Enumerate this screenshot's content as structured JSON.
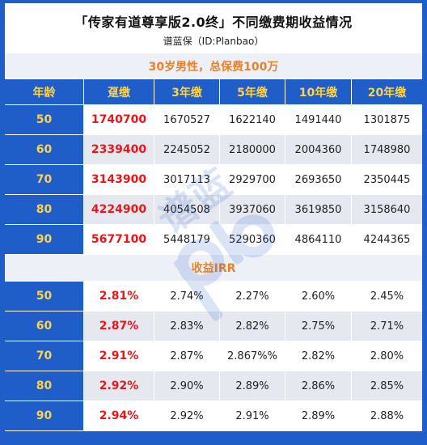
{
  "header": {
    "title": "「传家有道尊享版2.0终」不同缴费期收益情况",
    "subtitle": "谱蓝保（ID:Planbao）"
  },
  "section1": {
    "banner": "30岁男性，总保费100万"
  },
  "columns": [
    "年龄",
    "趸缴",
    "3年缴",
    "5年缴",
    "10年缴",
    "20年缴"
  ],
  "cash_rows": [
    {
      "age": "50",
      "values": [
        "1740700",
        "1670527",
        "1622140",
        "1491440",
        "1301875"
      ]
    },
    {
      "age": "60",
      "values": [
        "2339400",
        "2245052",
        "2180000",
        "2004360",
        "1748980"
      ]
    },
    {
      "age": "70",
      "values": [
        "3143900",
        "3017113",
        "2929700",
        "2693650",
        "2350445"
      ]
    },
    {
      "age": "80",
      "values": [
        "4224900",
        "4054508",
        "3937060",
        "3619850",
        "3158640"
      ]
    },
    {
      "age": "90",
      "values": [
        "5677100",
        "5448179",
        "5290360",
        "4864110",
        "4244365"
      ]
    }
  ],
  "section2": {
    "banner": "收益IRR"
  },
  "irr_rows": [
    {
      "age": "50",
      "values": [
        "2.81%",
        "2.74%",
        "2.27%",
        "2.60%",
        "2.45%"
      ]
    },
    {
      "age": "60",
      "values": [
        "2.87%",
        "2.83%",
        "2.82%",
        "2.75%",
        "2.71%"
      ]
    },
    {
      "age": "70",
      "values": [
        "2.91%",
        "2.87%",
        "2.867%%",
        "2.82%",
        "2.80%"
      ]
    },
    {
      "age": "80",
      "values": [
        "2.92%",
        "2.90%",
        "2.89%",
        "2.86%",
        "2.85%"
      ]
    },
    {
      "age": "90",
      "values": [
        "2.94%",
        "2.92%",
        "2.91%",
        "2.89%",
        "2.88%"
      ]
    }
  ],
  "watermark": {
    "text": "谱蓝"
  },
  "colors": {
    "frame": "#1f5dc8",
    "header_text": "#ffd24a",
    "highlight": "#e8171b",
    "banner_text": "#e8822a"
  }
}
